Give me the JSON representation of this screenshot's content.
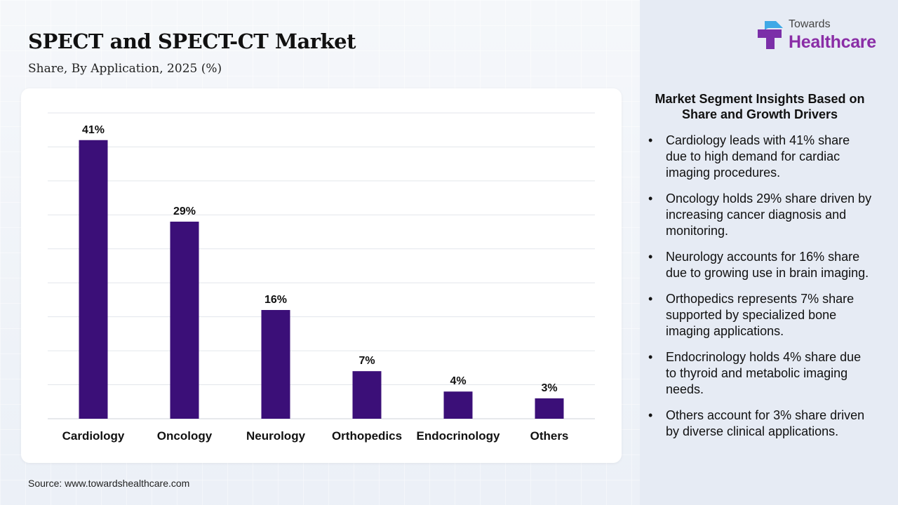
{
  "header": {
    "title": "SPECT and SPECT-CT Market",
    "subtitle": "Share, By Application, 2025 (%)"
  },
  "logo": {
    "line1": "Towards",
    "line2": "Healthcare",
    "icon": "medical-cross-icon",
    "colors": {
      "cross_cyan": "#3fa9e6",
      "cross_purple": "#7b2fa8",
      "text": "#8a2da6"
    }
  },
  "chart_data": {
    "type": "bar",
    "categories": [
      "Cardiology",
      "Oncology",
      "Neurology",
      "Orthopedics",
      "Endocrinology",
      "Others"
    ],
    "values": [
      41,
      29,
      16,
      7,
      4,
      3
    ],
    "data_labels": [
      "41%",
      "29%",
      "16%",
      "7%",
      "4%",
      "3%"
    ],
    "title": "SPECT and SPECT-CT Market",
    "subtitle": "Share, By Application, 2025 (%)",
    "xlabel": "",
    "ylabel": "",
    "ylim": [
      0,
      45
    ],
    "grid": true,
    "legend": "none",
    "bar_color": "#3b0f78"
  },
  "insights": {
    "heading": "Market Segment Insights Based on Share and Growth Drivers",
    "items": [
      "Cardiology leads with 41% share due to high demand for cardiac imaging procedures.",
      "Oncology holds 29% share driven by increasing cancer diagnosis and monitoring.",
      "Neurology accounts for 16% share due to growing use in brain imaging.",
      "Orthopedics represents 7% share supported by specialized bone imaging applications.",
      "Endocrinology holds 4% share due to thyroid and metabolic imaging needs.",
      "Others account for 3% share driven by diverse clinical applications."
    ]
  },
  "footer": {
    "source": "Source: www.towardshealthcare.com"
  }
}
